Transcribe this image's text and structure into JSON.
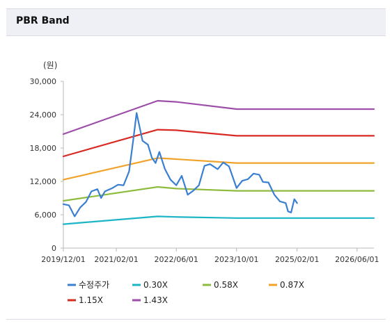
{
  "panel": {
    "title": "PBR Band"
  },
  "chart_data": {
    "type": "line",
    "unit_label": "(원)",
    "ylim": [
      0,
      30000
    ],
    "yticks": [
      "0",
      "6,000",
      "12,000",
      "18,000",
      "24,000",
      "30,000"
    ],
    "ytick_values": [
      0,
      6000,
      12000,
      18000,
      24000,
      30000
    ],
    "xlim": [
      "2019-12-01",
      "2026-10-15"
    ],
    "xticks": [
      "2019/12/01",
      "2021/02/01",
      "2022/06/01",
      "2023/10/01",
      "2025/02/01",
      "2026/06/01"
    ],
    "xtick_values": [
      "2019-12-01",
      "2021-02-01",
      "2022-06-01",
      "2023-10-01",
      "2025-02-01",
      "2026-06-01"
    ],
    "grid": false,
    "legend_position": "bottom",
    "series": [
      {
        "name": "수정주가",
        "color": "#3a7fd1",
        "points": [
          [
            "2019-12-01",
            7900
          ],
          [
            "2020-01-15",
            7700
          ],
          [
            "2020-03-01",
            5700
          ],
          [
            "2020-04-15",
            7300
          ],
          [
            "2020-06-01",
            8300
          ],
          [
            "2020-07-15",
            10200
          ],
          [
            "2020-09-01",
            10600
          ],
          [
            "2020-10-01",
            9000
          ],
          [
            "2020-11-01",
            10200
          ],
          [
            "2021-01-01",
            10800
          ],
          [
            "2021-02-15",
            11400
          ],
          [
            "2021-04-01",
            11300
          ],
          [
            "2021-05-15",
            13800
          ],
          [
            "2021-06-15",
            19000
          ],
          [
            "2021-07-15",
            24300
          ],
          [
            "2021-09-01",
            19300
          ],
          [
            "2021-10-15",
            18600
          ],
          [
            "2021-11-15",
            16300
          ],
          [
            "2021-12-15",
            15300
          ],
          [
            "2022-01-15",
            17300
          ],
          [
            "2022-03-01",
            14200
          ],
          [
            "2022-04-15",
            12300
          ],
          [
            "2022-06-01",
            11300
          ],
          [
            "2022-07-15",
            13000
          ],
          [
            "2022-09-01",
            9600
          ],
          [
            "2022-10-15",
            10300
          ],
          [
            "2022-12-01",
            11300
          ],
          [
            "2023-01-15",
            14800
          ],
          [
            "2023-03-01",
            15100
          ],
          [
            "2023-05-01",
            14200
          ],
          [
            "2023-06-15",
            15400
          ],
          [
            "2023-08-01",
            14700
          ],
          [
            "2023-10-01",
            10800
          ],
          [
            "2023-11-15",
            12100
          ],
          [
            "2024-01-01",
            12400
          ],
          [
            "2024-02-15",
            13400
          ],
          [
            "2024-04-01",
            13200
          ],
          [
            "2024-05-01",
            11900
          ],
          [
            "2024-06-15",
            11800
          ],
          [
            "2024-08-01",
            9600
          ],
          [
            "2024-09-15",
            8400
          ],
          [
            "2024-11-01",
            8100
          ],
          [
            "2024-11-20",
            6600
          ],
          [
            "2024-12-15",
            6400
          ],
          [
            "2025-01-10",
            8800
          ],
          [
            "2025-02-01",
            8100
          ]
        ]
      },
      {
        "name": "0.30X",
        "color": "#1bb5c6",
        "points": [
          [
            "2019-12-01",
            4300
          ],
          [
            "2022-01-01",
            5700
          ],
          [
            "2022-06-01",
            5600
          ],
          [
            "2023-10-01",
            5400
          ],
          [
            "2026-10-15",
            5400
          ]
        ]
      },
      {
        "name": "0.58X",
        "color": "#8dbb3e",
        "points": [
          [
            "2019-12-01",
            8500
          ],
          [
            "2022-01-01",
            11000
          ],
          [
            "2022-06-01",
            10700
          ],
          [
            "2023-10-01",
            10300
          ],
          [
            "2026-10-15",
            10300
          ]
        ]
      },
      {
        "name": "0.87X",
        "color": "#f0a32a",
        "points": [
          [
            "2019-12-01",
            12300
          ],
          [
            "2022-01-01",
            16200
          ],
          [
            "2022-06-01",
            16000
          ],
          [
            "2023-10-01",
            15300
          ],
          [
            "2026-10-15",
            15300
          ]
        ]
      },
      {
        "name": "1.15X",
        "color": "#d82a22",
        "points": [
          [
            "2019-12-01",
            16500
          ],
          [
            "2022-01-01",
            21300
          ],
          [
            "2022-06-01",
            21200
          ],
          [
            "2023-10-01",
            20200
          ],
          [
            "2026-10-15",
            20200
          ]
        ]
      },
      {
        "name": "1.43X",
        "color": "#9c4ea8",
        "points": [
          [
            "2019-12-01",
            20500
          ],
          [
            "2022-01-01",
            26500
          ],
          [
            "2022-06-01",
            26300
          ],
          [
            "2023-10-01",
            25000
          ],
          [
            "2026-10-15",
            25000
          ]
        ]
      }
    ]
  }
}
